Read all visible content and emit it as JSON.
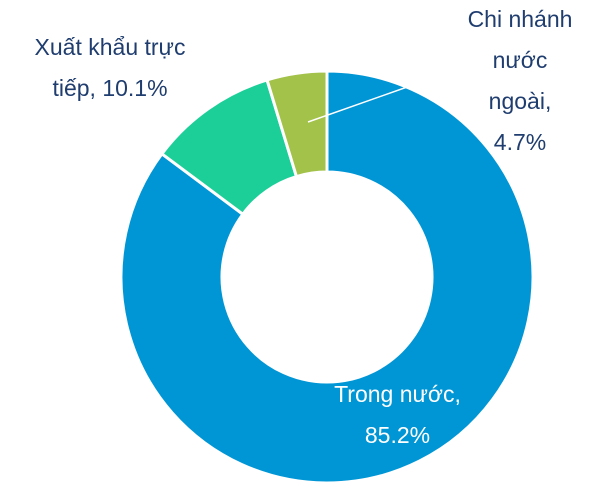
{
  "chart_data": {
    "type": "donut",
    "categories": [
      "Trong nước",
      "Xuất khẩu trực tiếp",
      "Chi nhánh nước ngoài"
    ],
    "values": [
      85.2,
      10.1,
      4.7
    ],
    "value_labels": [
      "85.2%",
      "10.1%",
      "4.7%"
    ],
    "label_separator": ",",
    "colors": [
      "#0096d6",
      "#1ccf98",
      "#a2c24a"
    ]
  }
}
